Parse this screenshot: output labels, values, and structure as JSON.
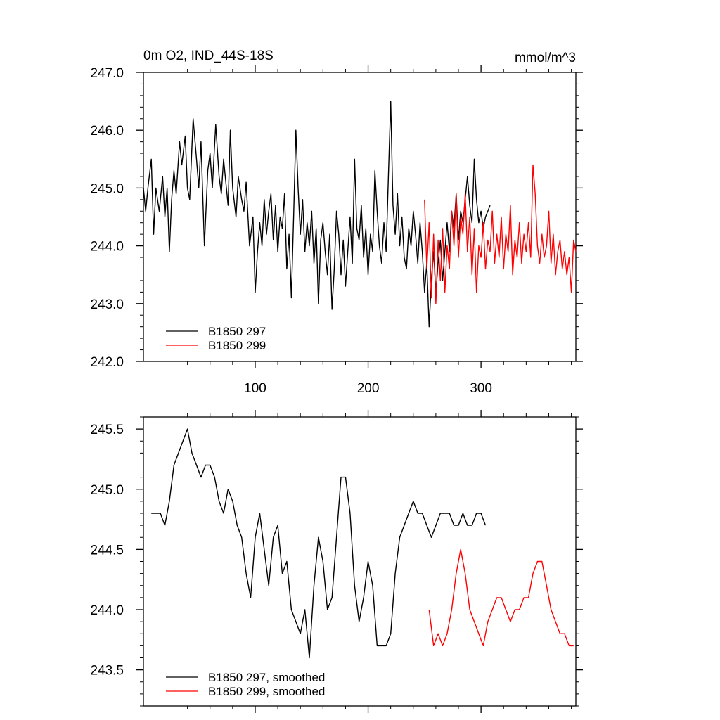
{
  "chart_data": [
    {
      "type": "line",
      "title": "0m O2, IND_44S-18S",
      "units": "mmol/m^3",
      "xlabel": "",
      "ylabel": "",
      "xlim": [
        1,
        384
      ],
      "ylim": [
        242.0,
        247.0
      ],
      "x_ticks": [
        100,
        200,
        300
      ],
      "y_ticks": [
        "242.0",
        "243.0",
        "244.0",
        "245.0",
        "246.0",
        "247.0"
      ],
      "grid": false,
      "legend_position": "bottom-left",
      "series": [
        {
          "name": "B1850 297",
          "color": "#000000",
          "x": [
            1,
            3,
            5,
            8,
            10,
            12,
            15,
            18,
            20,
            22,
            24,
            26,
            28,
            30,
            33,
            35,
            38,
            40,
            42,
            45,
            48,
            50,
            52,
            55,
            58,
            60,
            62,
            65,
            68,
            70,
            72,
            74,
            76,
            78,
            80,
            83,
            85,
            88,
            90,
            92,
            95,
            98,
            100,
            102,
            104,
            106,
            108,
            110,
            112,
            114,
            116,
            118,
            120,
            122,
            124,
            126,
            128,
            130,
            132,
            134,
            136,
            138,
            140,
            142,
            144,
            146,
            148,
            150,
            152,
            154,
            156,
            158,
            160,
            162,
            164,
            166,
            168,
            170,
            172,
            174,
            176,
            178,
            180,
            182,
            184,
            186,
            188,
            190,
            192,
            194,
            196,
            198,
            200,
            202,
            204,
            206,
            208,
            210,
            212,
            214,
            216,
            218,
            220,
            222,
            224,
            226,
            228,
            230,
            232,
            234,
            236,
            238,
            240,
            242,
            244,
            246,
            248,
            250,
            252,
            254,
            256,
            258,
            260,
            262,
            264,
            266,
            268,
            270,
            272,
            274,
            276,
            278,
            280,
            282,
            284,
            286,
            288,
            290,
            292,
            294,
            296,
            298,
            300,
            302,
            304,
            306,
            308
          ],
          "y": [
            245.0,
            244.6,
            245.0,
            245.5,
            244.2,
            245.0,
            244.6,
            245.2,
            244.5,
            245.0,
            243.9,
            244.8,
            245.3,
            244.9,
            245.8,
            245.4,
            245.9,
            245.0,
            244.8,
            246.2,
            245.5,
            245.0,
            245.8,
            244.0,
            245.3,
            245.6,
            245.0,
            246.1,
            245.2,
            244.9,
            245.5,
            245.1,
            244.7,
            246.0,
            245.0,
            244.5,
            245.2,
            244.8,
            244.6,
            245.1,
            244.0,
            244.5,
            243.2,
            243.9,
            244.4,
            244.0,
            244.8,
            244.2,
            244.6,
            244.9,
            244.1,
            244.7,
            243.9,
            244.5,
            244.3,
            244.9,
            243.6,
            244.2,
            243.1,
            244.5,
            246.0,
            245.0,
            244.2,
            244.8,
            243.9,
            244.4,
            244.0,
            244.6,
            243.7,
            244.3,
            243.0,
            244.1,
            244.4,
            243.9,
            243.5,
            244.2,
            242.9,
            243.6,
            244.6,
            244.2,
            243.5,
            244.1,
            243.3,
            243.9,
            244.5,
            243.7,
            245.5,
            244.3,
            244.1,
            244.7,
            243.8,
            244.3,
            243.5,
            244.2,
            243.9,
            245.3,
            244.6,
            244.0,
            243.7,
            244.4,
            243.9,
            245.2,
            246.5,
            244.7,
            244.2,
            244.9,
            244.0,
            244.5,
            243.8,
            243.6,
            244.3,
            244.0,
            244.6,
            244.2,
            243.7,
            244.4,
            243.9,
            243.2,
            243.7,
            242.6,
            243.4,
            243.9,
            243.2,
            243.7,
            244.1,
            243.4,
            243.9,
            244.4,
            243.9,
            244.6,
            244.3,
            244.9,
            244.1,
            244.6,
            244.4,
            244.8,
            245.2,
            244.7,
            244.4,
            245.5,
            244.8,
            244.4,
            244.6,
            244.3,
            244.5,
            244.6,
            244.7
          ]
        },
        {
          "name": "B1850 299",
          "color": "#ff0000",
          "x": [
            250,
            252,
            254,
            256,
            258,
            260,
            262,
            264,
            266,
            268,
            270,
            272,
            274,
            276,
            278,
            280,
            282,
            284,
            286,
            288,
            290,
            292,
            294,
            296,
            298,
            300,
            302,
            304,
            306,
            308,
            310,
            312,
            314,
            316,
            318,
            320,
            322,
            324,
            326,
            328,
            330,
            332,
            334,
            336,
            338,
            340,
            342,
            344,
            346,
            348,
            350,
            352,
            354,
            356,
            358,
            360,
            362,
            364,
            366,
            368,
            370,
            372,
            374,
            376,
            378,
            380,
            382,
            384
          ],
          "y": [
            244.8,
            243.6,
            244.4,
            243.1,
            244.2,
            243.0,
            244.1,
            243.4,
            244.3,
            243.2,
            244.0,
            243.6,
            244.6,
            244.0,
            244.9,
            243.8,
            244.5,
            244.2,
            244.9,
            243.9,
            244.5,
            243.5,
            244.3,
            243.2,
            244.0,
            243.8,
            244.4,
            243.6,
            244.1,
            243.9,
            244.6,
            243.7,
            244.2,
            243.8,
            244.5,
            243.6,
            244.2,
            243.9,
            244.7,
            243.5,
            244.1,
            243.8,
            244.4,
            243.7,
            244.2,
            243.9,
            244.4,
            243.8,
            245.4,
            244.9,
            244.0,
            243.7,
            244.2,
            243.8,
            244.0,
            244.6,
            243.7,
            244.2,
            243.5,
            243.9,
            244.1,
            243.6,
            243.9,
            243.5,
            243.8,
            243.2,
            244.1,
            243.9
          ]
        }
      ]
    },
    {
      "type": "line",
      "title": "",
      "xlabel": "",
      "ylabel": "",
      "xlim": [
        1,
        384
      ],
      "ylim": [
        243.2,
        245.6
      ],
      "y_ticks": [
        "243.5",
        "244.0",
        "244.5",
        "245.0",
        "245.5"
      ],
      "grid": false,
      "legend_position": "bottom-left",
      "series": [
        {
          "name": "B1850 297, smoothed",
          "color": "#000000",
          "x": [
            8,
            12,
            16,
            20,
            24,
            28,
            32,
            36,
            40,
            44,
            48,
            52,
            56,
            60,
            64,
            68,
            72,
            76,
            80,
            84,
            88,
            92,
            96,
            100,
            104,
            108,
            112,
            116,
            120,
            124,
            128,
            132,
            136,
            140,
            144,
            148,
            152,
            156,
            160,
            164,
            168,
            172,
            176,
            180,
            184,
            188,
            192,
            196,
            200,
            204,
            208,
            212,
            216,
            220,
            224,
            228,
            232,
            236,
            240,
            244,
            248,
            252,
            256,
            260,
            264,
            268,
            272,
            276,
            280,
            284,
            288,
            292,
            296,
            300,
            304
          ],
          "y": [
            244.8,
            244.8,
            244.8,
            244.7,
            244.9,
            245.2,
            245.3,
            245.4,
            245.5,
            245.3,
            245.2,
            245.1,
            245.2,
            245.2,
            245.1,
            244.9,
            244.8,
            245.0,
            244.9,
            244.7,
            244.6,
            244.3,
            244.1,
            244.6,
            244.8,
            244.5,
            244.2,
            244.6,
            244.7,
            244.3,
            244.4,
            244.0,
            243.9,
            243.8,
            244.0,
            243.6,
            244.2,
            244.6,
            244.4,
            244.0,
            244.1,
            244.6,
            245.1,
            245.1,
            244.8,
            244.2,
            243.9,
            244.1,
            244.4,
            244.2,
            243.7,
            243.7,
            243.7,
            243.8,
            244.3,
            244.6,
            244.7,
            244.8,
            244.9,
            244.8,
            244.8,
            244.7,
            244.6,
            244.7,
            244.8,
            244.8,
            244.8,
            244.7,
            244.7,
            244.8,
            244.7,
            244.7,
            244.8,
            244.8,
            244.7
          ]
        },
        {
          "name": "B1850 299, smoothed",
          "color": "#ff0000",
          "x": [
            254,
            258,
            262,
            266,
            270,
            274,
            278,
            282,
            286,
            290,
            294,
            298,
            302,
            306,
            310,
            314,
            318,
            322,
            326,
            330,
            334,
            338,
            342,
            346,
            350,
            354,
            358,
            362,
            366,
            370,
            374,
            378,
            382
          ],
          "y": [
            244.0,
            243.7,
            243.8,
            243.7,
            243.8,
            244.0,
            244.3,
            244.5,
            244.3,
            244.0,
            243.9,
            243.8,
            243.7,
            243.9,
            244.0,
            244.1,
            244.1,
            244.0,
            243.9,
            244.0,
            244.0,
            244.1,
            244.1,
            244.3,
            244.4,
            244.4,
            244.2,
            244.0,
            243.9,
            243.8,
            243.8,
            243.7,
            243.7
          ]
        }
      ]
    }
  ]
}
